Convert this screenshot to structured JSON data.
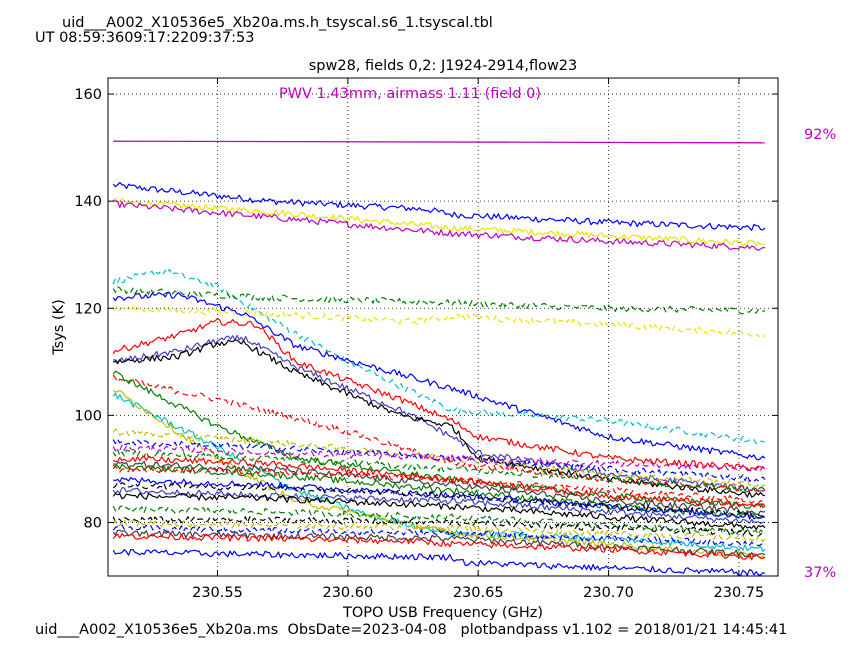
{
  "header": {
    "filename": "uid___A002_X10536e5_Xb20a.ms.h_tsyscal.s6_1.tsyscal.tbl",
    "ut_label": "UT 08:59:3609:17:2209:37:53"
  },
  "footer": {
    "text": "uid___A002_X10536e5_Xb20a.ms  ObsDate=2023-04-08   plotbandpass v1.102 = 2018/01/21 14:45:41"
  },
  "chart_data": {
    "type": "line",
    "title": "spw28,  fields 0,2: J1924-2914,flow23",
    "annotation": "PWV 1.43mm, airmass 1.11 (field 0)",
    "xlabel": "TOPO USB Frequency (GHz)",
    "ylabel": "Tsys (K)",
    "xlim": [
      230.508,
      230.765
    ],
    "ylim": [
      70,
      163
    ],
    "xticks": [
      230.55,
      230.6,
      230.65,
      230.7,
      230.75
    ],
    "xtick_labels": [
      "230.55",
      "230.60",
      "230.65",
      "230.70",
      "230.75"
    ],
    "yticks": [
      80,
      100,
      120,
      140,
      160
    ],
    "ytick_labels": [
      "80",
      "100",
      "120",
      "140",
      "160"
    ],
    "grid": true,
    "transmission_labels": {
      "top": "92%",
      "bottom": "37%"
    },
    "transmission_curve": {
      "x": [
        230.51,
        230.76
      ],
      "y": [
        151.2,
        150.9
      ],
      "color": "#bf00bf"
    },
    "colors": {
      "blue": "#0000ff",
      "green": "#007f00",
      "red": "#ff0000",
      "cyan": "#00bfbf",
      "magenta": "#bf00bf",
      "yellow": "#e6e600",
      "olive": "#bfbf00",
      "black": "#000000",
      "indigo": "#4040c0",
      "darkgray": "#404040"
    },
    "series": [
      {
        "color": "blue",
        "style": "solid",
        "x": [
          230.51,
          230.55,
          230.57,
          230.63,
          230.64,
          230.7,
          230.76
        ],
        "y": [
          143,
          141,
          140,
          138.5,
          137.5,
          136,
          135
        ]
      },
      {
        "color": "yellow",
        "style": "solid",
        "x": [
          230.51,
          230.57,
          230.64,
          230.7,
          230.76
        ],
        "y": [
          140,
          138,
          135,
          133.5,
          132
        ]
      },
      {
        "color": "magenta",
        "style": "solid",
        "x": [
          230.51,
          230.57,
          230.64,
          230.7,
          230.76
        ],
        "y": [
          139.5,
          137,
          134,
          132.5,
          131.3
        ]
      },
      {
        "color": "cyan",
        "style": "dashed",
        "x": [
          230.51,
          230.53,
          230.55,
          230.57,
          230.6,
          230.64,
          230.7,
          230.76
        ],
        "y": [
          125,
          127,
          124,
          118,
          110,
          101,
          99,
          95
        ]
      },
      {
        "color": "green",
        "style": "dashed",
        "x": [
          230.51,
          230.57,
          230.64,
          230.7,
          230.76
        ],
        "y": [
          123.5,
          122,
          121,
          120,
          119.5
        ]
      },
      {
        "color": "yellow",
        "style": "dashed",
        "x": [
          230.51,
          230.57,
          230.625,
          230.64,
          230.7,
          230.76
        ],
        "y": [
          120,
          119,
          117.5,
          118.5,
          117,
          115
        ]
      },
      {
        "color": "blue",
        "style": "solid",
        "x": [
          230.51,
          230.535,
          230.56,
          230.58,
          230.64,
          230.7,
          230.76
        ],
        "y": [
          122,
          122.5,
          119,
          113,
          105,
          96,
          92
        ]
      },
      {
        "color": "red",
        "style": "solid",
        "x": [
          230.51,
          230.535,
          230.55,
          230.565,
          230.58,
          230.62,
          230.64,
          230.65,
          230.7,
          230.76
        ],
        "y": [
          112,
          115,
          117.5,
          117,
          110,
          103,
          99,
          96,
          92,
          90
        ]
      },
      {
        "color": "indigo",
        "style": "solid",
        "x": [
          230.51,
          230.535,
          230.55,
          230.56,
          230.58,
          230.62,
          230.64,
          230.65,
          230.7,
          230.76
        ],
        "y": [
          110,
          112,
          114,
          114.5,
          109,
          101,
          96,
          93,
          89,
          86
        ]
      },
      {
        "color": "black",
        "style": "solid",
        "x": [
          230.51,
          230.535,
          230.55,
          230.56,
          230.58,
          230.62,
          230.64,
          230.65,
          230.7,
          230.76
        ],
        "y": [
          110,
          111,
          113.5,
          113.5,
          108,
          100,
          98,
          92,
          88,
          85
        ]
      },
      {
        "color": "red",
        "style": "dashed",
        "x": [
          230.51,
          230.55,
          230.6,
          230.64,
          230.7,
          230.76
        ],
        "y": [
          107,
          103,
          97,
          91,
          88,
          86
        ]
      },
      {
        "color": "green",
        "style": "solid",
        "x": [
          230.51,
          230.55,
          230.58,
          230.64,
          230.7,
          230.76
        ],
        "y": [
          108,
          98,
          92,
          88,
          85,
          83
        ]
      },
      {
        "color": "cyan",
        "style": "solid",
        "x": [
          230.51,
          230.55,
          230.58,
          230.61,
          230.64,
          230.7,
          230.76
        ],
        "y": [
          104,
          94,
          86,
          81,
          78,
          77,
          75
        ]
      },
      {
        "color": "olive",
        "style": "solid",
        "x": [
          230.51,
          230.55,
          230.58,
          230.62,
          230.64,
          230.7,
          230.76
        ],
        "y": [
          105,
          92,
          84,
          80,
          78,
          76,
          73.5
        ]
      },
      {
        "color": "olive",
        "style": "dashed",
        "x": [
          230.51,
          230.57,
          230.64,
          230.7,
          230.76
        ],
        "y": [
          97,
          95,
          92,
          89,
          87
        ]
      },
      {
        "color": "blue",
        "style": "dashed",
        "x": [
          230.51,
          230.57,
          230.64,
          230.7,
          230.76
        ],
        "y": [
          95,
          94,
          92,
          90,
          88
        ]
      },
      {
        "color": "magenta",
        "style": "dashed",
        "x": [
          230.51,
          230.57,
          230.64,
          230.7,
          230.76
        ],
        "y": [
          94,
          93,
          92,
          91,
          90
        ]
      },
      {
        "color": "green",
        "style": "dashed",
        "x": [
          230.51,
          230.57,
          230.64,
          230.7,
          230.76
        ],
        "y": [
          93,
          92,
          90,
          88,
          86
        ]
      },
      {
        "color": "red",
        "style": "solid",
        "x": [
          230.51,
          230.57,
          230.64,
          230.7,
          230.76
        ],
        "y": [
          92,
          91,
          88,
          85,
          83
        ]
      },
      {
        "color": "darkgray",
        "style": "solid",
        "x": [
          230.51,
          230.57,
          230.64,
          230.7,
          230.76
        ],
        "y": [
          91,
          90,
          87,
          84,
          82
        ]
      },
      {
        "color": "green",
        "style": "solid",
        "x": [
          230.51,
          230.57,
          230.64,
          230.7,
          230.76
        ],
        "y": [
          90.5,
          89,
          86,
          83,
          81
        ]
      },
      {
        "color": "red",
        "style": "dashed",
        "x": [
          230.51,
          230.57,
          230.64,
          230.7,
          230.76
        ],
        "y": [
          90,
          89.5,
          88,
          86,
          84
        ]
      },
      {
        "color": "blue",
        "style": "solid",
        "x": [
          230.51,
          230.57,
          230.64,
          230.7,
          230.76
        ],
        "y": [
          88,
          87,
          85,
          83,
          81
        ]
      },
      {
        "color": "black",
        "style": "dashed",
        "x": [
          230.51,
          230.57,
          230.64,
          230.7,
          230.76
        ],
        "y": [
          87,
          86.5,
          85,
          83,
          81.5
        ]
      },
      {
        "color": "indigo",
        "style": "solid",
        "x": [
          230.51,
          230.57,
          230.64,
          230.7,
          230.76
        ],
        "y": [
          86,
          85,
          84,
          82,
          80
        ]
      },
      {
        "color": "black",
        "style": "solid",
        "x": [
          230.51,
          230.57,
          230.64,
          230.7,
          230.76
        ],
        "y": [
          85,
          84.5,
          83,
          81,
          79
        ]
      },
      {
        "color": "green",
        "style": "dashed",
        "x": [
          230.51,
          230.57,
          230.64,
          230.7,
          230.76
        ],
        "y": [
          82.5,
          82,
          81,
          79.5,
          78
        ]
      },
      {
        "color": "black",
        "style": "dashed",
        "x": [
          230.51,
          230.57,
          230.64,
          230.7,
          230.76
        ],
        "y": [
          80.5,
          80.5,
          80,
          79,
          78
        ]
      },
      {
        "color": "olive",
        "style": "dashed",
        "x": [
          230.51,
          230.57,
          230.64,
          230.7,
          230.76
        ],
        "y": [
          80,
          79.5,
          79,
          78,
          77
        ]
      },
      {
        "color": "blue",
        "style": "dashed",
        "x": [
          230.51,
          230.57,
          230.64,
          230.7,
          230.76
        ],
        "y": [
          79,
          78.5,
          78,
          77,
          76
        ]
      },
      {
        "color": "darkgray",
        "style": "solid",
        "x": [
          230.51,
          230.57,
          230.64,
          230.7,
          230.76
        ],
        "y": [
          78,
          77.5,
          77,
          75.5,
          74
        ]
      },
      {
        "color": "red",
        "style": "solid",
        "x": [
          230.51,
          230.57,
          230.625,
          230.64,
          230.7,
          230.76
        ],
        "y": [
          77.5,
          77,
          76.5,
          76,
          75,
          73.5
        ]
      },
      {
        "color": "blue",
        "style": "solid",
        "x": [
          230.51,
          230.57,
          230.64,
          230.645,
          230.7,
          230.76
        ],
        "y": [
          74.5,
          74,
          73.5,
          72.5,
          71.5,
          70.5
        ]
      }
    ]
  }
}
